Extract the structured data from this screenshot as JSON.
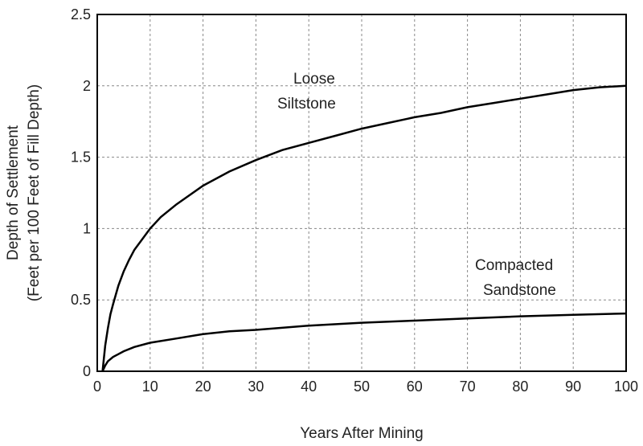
{
  "chart_data": {
    "type": "line",
    "title": "",
    "xlabel": "Years After Mining",
    "ylabel_line1": "Depth of Settlement",
    "ylabel_line2": "(Feet per 100 Feet of Fill Depth)",
    "xlim": [
      0,
      100
    ],
    "ylim": [
      0,
      2.5
    ],
    "xticks": [
      0,
      10,
      20,
      30,
      40,
      50,
      60,
      70,
      80,
      90,
      100
    ],
    "yticks": [
      "0",
      "0.5",
      "1",
      "1.5",
      "2",
      "2.5"
    ],
    "ytick_values": [
      0,
      0.5,
      1,
      1.5,
      2,
      2.5
    ],
    "grid": true,
    "series": [
      {
        "label_line1": "Loose",
        "label_line2": "Siltstone",
        "x": [
          1,
          1.5,
          2,
          2.5,
          3,
          4,
          5,
          6,
          7,
          8,
          10,
          12,
          15,
          20,
          25,
          30,
          35,
          40,
          45,
          50,
          55,
          60,
          65,
          70,
          75,
          80,
          85,
          90,
          95,
          100
        ],
        "y": [
          0,
          0.18,
          0.3,
          0.4,
          0.47,
          0.6,
          0.7,
          0.78,
          0.85,
          0.9,
          1.0,
          1.08,
          1.17,
          1.3,
          1.4,
          1.48,
          1.55,
          1.6,
          1.65,
          1.7,
          1.74,
          1.78,
          1.81,
          1.85,
          1.88,
          1.91,
          1.94,
          1.97,
          1.99,
          2.0
        ]
      },
      {
        "label_line1": "Compacted",
        "label_line2": "Sandstone",
        "x": [
          1,
          1.5,
          2,
          3,
          4,
          5,
          7,
          10,
          15,
          20,
          25,
          30,
          40,
          50,
          60,
          70,
          80,
          90,
          100
        ],
        "y": [
          0,
          0.04,
          0.07,
          0.1,
          0.12,
          0.14,
          0.17,
          0.2,
          0.23,
          0.26,
          0.28,
          0.29,
          0.32,
          0.34,
          0.355,
          0.37,
          0.385,
          0.395,
          0.405
        ]
      }
    ]
  }
}
